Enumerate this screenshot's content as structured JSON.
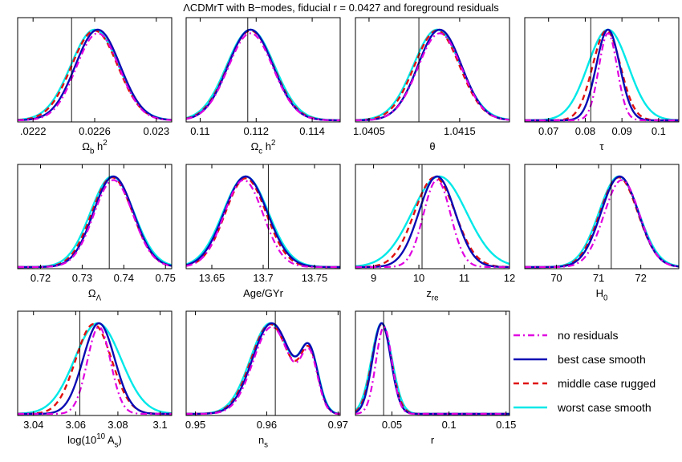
{
  "figure": {
    "title": "ΛCDMrT with B−modes, fiducial r = 0.0427 and foreground residuals"
  },
  "chart_data": [
    {
      "type": "line",
      "xlabel": "Ω_b h^2",
      "xlim": [
        0.0221,
        0.0231
      ],
      "ticks": [
        0.0222,
        0.0226,
        0.023
      ],
      "tick_labels": [
        ".0222",
        "0.0226",
        "0.023"
      ],
      "vline": 0.02245,
      "curves": {
        "no_residuals": {
          "peak": 0.02262,
          "sigma": 0.00014
        },
        "best_case": {
          "peak": 0.02262,
          "sigma": 0.000145
        },
        "middle_case": {
          "peak": 0.0226,
          "sigma": 0.00015
        },
        "worst_case": {
          "peak": 0.0226,
          "sigma": 0.000155
        }
      }
    },
    {
      "type": "line",
      "xlabel": "Ω_c h^2",
      "xlim": [
        0.1095,
        0.115
      ],
      "ticks": [
        0.11,
        0.112,
        0.114
      ],
      "tick_labels": [
        "0.11",
        "0.112",
        "0.114"
      ],
      "vline": 0.1117,
      "curves": {
        "no_residuals": {
          "peak": 0.1118,
          "sigma": 0.0008
        },
        "best_case": {
          "peak": 0.1118,
          "sigma": 0.0008
        },
        "middle_case": {
          "peak": 0.1118,
          "sigma": 0.00082
        },
        "worst_case": {
          "peak": 0.1118,
          "sigma": 0.00085
        }
      }
    },
    {
      "type": "line",
      "xlabel": "θ",
      "xlim": [
        1.04035,
        1.04205
      ],
      "ticks": [
        1.0405,
        1.0415
      ],
      "tick_labels": [
        "1.0405",
        "1.0415"
      ],
      "vline": 1.04105,
      "curves": {
        "no_residuals": {
          "peak": 1.04128,
          "sigma": 0.00024
        },
        "best_case": {
          "peak": 1.04128,
          "sigma": 0.00024
        },
        "middle_case": {
          "peak": 1.04125,
          "sigma": 0.00025
        },
        "worst_case": {
          "peak": 1.04125,
          "sigma": 0.00026
        }
      }
    },
    {
      "type": "line",
      "xlabel": "τ",
      "xlim": [
        0.0635,
        0.1055
      ],
      "ticks": [
        0.07,
        0.08,
        0.09,
        0.1
      ],
      "tick_labels": [
        "0.07",
        "0.08",
        "0.09",
        "0.1"
      ],
      "vline": 0.0815,
      "curves": {
        "no_residuals": {
          "peak": 0.0862,
          "sigma": 0.0025
        },
        "best_case": {
          "peak": 0.0862,
          "sigma": 0.0032
        },
        "middle_case": {
          "peak": 0.0858,
          "sigma": 0.0038
        },
        "worst_case": {
          "peak": 0.0862,
          "sigma": 0.0055
        }
      }
    },
    {
      "type": "line",
      "xlabel": "Ω_Λ",
      "xlim": [
        0.7145,
        0.7515
      ],
      "ticks": [
        0.72,
        0.73,
        0.74,
        0.75
      ],
      "tick_labels": [
        "0.72",
        "0.73",
        "0.74",
        "0.75"
      ],
      "vline": 0.7365,
      "curves": {
        "no_residuals": {
          "peak": 0.7375,
          "sigma": 0.0047
        },
        "best_case": {
          "peak": 0.7375,
          "sigma": 0.0048
        },
        "middle_case": {
          "peak": 0.7372,
          "sigma": 0.0049
        },
        "worst_case": {
          "peak": 0.7372,
          "sigma": 0.0052
        }
      }
    },
    {
      "type": "line",
      "xlabel": "Age/GYr",
      "xlim": [
        13.625,
        13.775
      ],
      "ticks": [
        13.65,
        13.7,
        13.75
      ],
      "tick_labels": [
        "13.65",
        "13.7",
        "13.75"
      ],
      "vline": 13.705,
      "curves": {
        "no_residuals": {
          "peak": 13.681,
          "sigma": 0.019
        },
        "best_case": {
          "peak": 13.683,
          "sigma": 0.021
        },
        "middle_case": {
          "peak": 13.683,
          "sigma": 0.02
        },
        "worst_case": {
          "peak": 13.683,
          "sigma": 0.022
        }
      }
    },
    {
      "type": "line",
      "xlabel": "z_re",
      "xlim": [
        8.6,
        12.0
      ],
      "ticks": [
        9,
        10,
        11,
        12
      ],
      "tick_labels": [
        "9",
        "10",
        "11",
        "12"
      ],
      "vline": 10.07,
      "curves": {
        "no_residuals": {
          "peak": 10.4,
          "sigma": 0.3
        },
        "best_case": {
          "peak": 10.4,
          "sigma": 0.4
        },
        "middle_case": {
          "peak": 10.35,
          "sigma": 0.45
        },
        "worst_case": {
          "peak": 10.45,
          "sigma": 0.6
        }
      }
    },
    {
      "type": "line",
      "xlabel": "H_0",
      "xlim": [
        69.25,
        72.9
      ],
      "ticks": [
        70,
        71,
        72
      ],
      "tick_labels": [
        "70",
        "71",
        "72"
      ],
      "vline": 71.3,
      "curves": {
        "no_residuals": {
          "peak": 71.55,
          "sigma": 0.42
        },
        "best_case": {
          "peak": 71.5,
          "sigma": 0.44
        },
        "middle_case": {
          "peak": 71.48,
          "sigma": 0.45
        },
        "worst_case": {
          "peak": 71.48,
          "sigma": 0.47
        }
      }
    },
    {
      "type": "line",
      "xlabel": "log(10^10 A_s)",
      "xlim": [
        3.0325,
        3.1055
      ],
      "ticks": [
        3.04,
        3.06,
        3.08,
        3.1
      ],
      "tick_labels": [
        "3.04",
        "3.06",
        "3.08",
        "3.1"
      ],
      "vline": 3.062,
      "curves": {
        "no_residuals": {
          "peak": 3.071,
          "sigma": 0.0055
        },
        "best_case": {
          "peak": 3.071,
          "sigma": 0.0075
        },
        "middle_case": {
          "peak": 3.0685,
          "sigma": 0.0085
        },
        "worst_case": {
          "peak": 3.0705,
          "sigma": 0.011
        }
      }
    },
    {
      "type": "line",
      "xlabel": "n_s",
      "xlim": [
        0.9487,
        0.9703
      ],
      "ticks": [
        0.95,
        0.96,
        0.97
      ],
      "tick_labels": [
        "0.95",
        "0.96",
        "0.97"
      ],
      "vline": 0.9612,
      "curves": {
        "no_residuals": {
          "peak": 0.9607,
          "sigma": 0.0026,
          "bump": 0.966
        },
        "best_case": {
          "peak": 0.9607,
          "sigma": 0.0027,
          "bump": 0.966
        },
        "middle_case": {
          "peak": 0.9605,
          "sigma": 0.0027,
          "bump": 0.966
        },
        "worst_case": {
          "peak": 0.9605,
          "sigma": 0.0028,
          "bump": 0.966
        }
      }
    },
    {
      "type": "line",
      "xlabel": "r",
      "xlim": [
        0.018,
        0.153
      ],
      "ticks": [
        0.05,
        0.1,
        0.15
      ],
      "tick_labels": [
        "0.05",
        "0.1",
        "0.15"
      ],
      "vline": 0.0427,
      "curves": {
        "no_residuals": {
          "peak": 0.043,
          "sigma": 0.007
        },
        "best_case": {
          "peak": 0.041,
          "sigma": 0.008
        },
        "middle_case": {
          "peak": 0.041,
          "sigma": 0.0085
        },
        "worst_case": {
          "peak": 0.041,
          "sigma": 0.009
        }
      }
    }
  ],
  "legend": {
    "items": [
      {
        "key": "no_residuals",
        "label": "no residuals",
        "color": "#e000e0",
        "dash": "8,4,2,4"
      },
      {
        "key": "best_case",
        "label": "best case smooth",
        "color": "#0a0ab4",
        "dash": ""
      },
      {
        "key": "middle_case",
        "label": "middle case rugged",
        "color": "#e01010",
        "dash": "7,5"
      },
      {
        "key": "worst_case",
        "label": "worst case smooth",
        "color": "#00e8e8",
        "dash": ""
      }
    ]
  }
}
